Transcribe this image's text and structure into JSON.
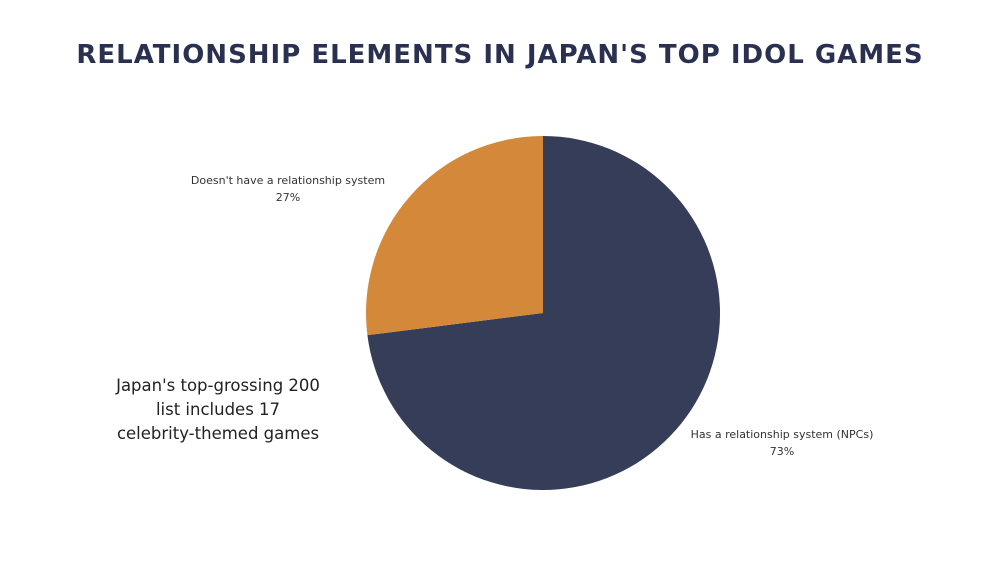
{
  "chart_data": {
    "type": "pie",
    "title": "RELATIONSHIP ELEMENTS IN JAPAN'S TOP IDOL GAMES",
    "slices": [
      {
        "label": "Has a relationship system (NPCs)",
        "value": 73,
        "value_label": "73%",
        "color": "#353d59"
      },
      {
        "label": "Doesn't have a relationship system",
        "value": 27,
        "value_label": "27%",
        "color": "#d4893a"
      }
    ],
    "start_angle": "12 o'clock",
    "direction": "clockwise",
    "legend": "none"
  },
  "annotation": {
    "lines": [
      "Japan's top-grossing 200",
      "list includes 17",
      "celebrity-themed games"
    ]
  }
}
